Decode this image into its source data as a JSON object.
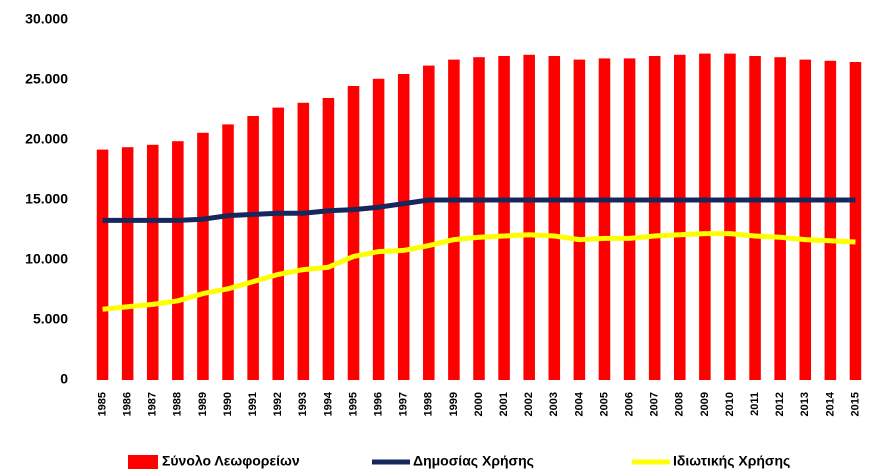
{
  "chart_data": {
    "type": "bar_line",
    "categories": [
      "1985",
      "1986",
      "1987",
      "1988",
      "1989",
      "1990",
      "1991",
      "1992",
      "1993",
      "1994",
      "1995",
      "1996",
      "1997",
      "1998",
      "1999",
      "2000",
      "2001",
      "2002",
      "2003",
      "2004",
      "2005",
      "2006",
      "2007",
      "2008",
      "2009",
      "2010",
      "2011",
      "2012",
      "2013",
      "2014",
      "2015"
    ],
    "series": [
      {
        "name": "Σύνολο Λεωφορείων",
        "type": "bar",
        "color": "#ff0000",
        "values": [
          19200,
          19400,
          19600,
          19900,
          20600,
          21300,
          22000,
          22700,
          23100,
          23500,
          24500,
          25100,
          25500,
          26200,
          26700,
          26900,
          27000,
          27100,
          27000,
          26700,
          26800,
          26800,
          27000,
          27100,
          27200,
          27200,
          27000,
          26900,
          26700,
          26600,
          26500
        ]
      },
      {
        "name": "Δημοσίας Χρήσης",
        "type": "line",
        "color": "#17275c",
        "values": [
          13300,
          13300,
          13300,
          13300,
          13400,
          13700,
          13800,
          13900,
          13900,
          14100,
          14200,
          14400,
          14700,
          15000,
          15000,
          15000,
          15000,
          15000,
          15000,
          15000,
          15000,
          15000,
          15000,
          15000,
          15000,
          15000,
          15000,
          15000,
          15000,
          15000,
          15000
        ]
      },
      {
        "name": "Ιδιωτικής Χρήσης",
        "type": "line",
        "color": "#ffff00",
        "values": [
          5900,
          6100,
          6300,
          6600,
          7200,
          7600,
          8200,
          8800,
          9200,
          9400,
          10300,
          10700,
          10800,
          11200,
          11700,
          11900,
          12000,
          12100,
          12000,
          11700,
          11800,
          11800,
          12000,
          12100,
          12200,
          12200,
          12000,
          11900,
          11700,
          11600,
          11500
        ]
      }
    ],
    "ylim": [
      0,
      30000
    ],
    "yticks": [
      0,
      {
        "value": 5000,
        "label": "5.000"
      },
      {
        "value": 10000,
        "label": "10.000"
      },
      {
        "value": 15000,
        "label": "15.000"
      },
      {
        "value": 20000,
        "label": "20.000"
      },
      {
        "value": 25000,
        "label": "25.000"
      },
      {
        "value": 30000,
        "label": "30.000"
      }
    ],
    "legend": "bottom"
  }
}
